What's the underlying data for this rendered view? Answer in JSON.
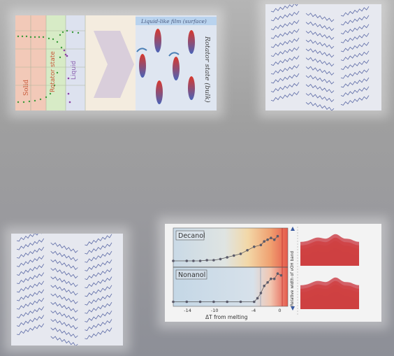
{
  "phase_panel": {
    "solid_label": "Solid",
    "rotator_label": "Rotator state",
    "liquid_label": "Liquid",
    "film_label": "Liquid-like film (surface)",
    "bulk_label": "Rotator state (bulk)"
  },
  "colors": {
    "solid_bg": "#f2c9b8",
    "rotator_bg": "#d7ebc6",
    "liquid_bg": "#dde2ef",
    "film_bg": "#d8e3f2",
    "accent_red": "#d9382c",
    "accent_blue": "#3f5fb5",
    "molecule_lines": "#5c6aa6"
  },
  "chart_data": [
    {
      "type": "scatter",
      "name": "Decanol",
      "x": [
        -16,
        -14,
        -13,
        -12,
        -11,
        -10,
        -9,
        -8,
        -7,
        -6,
        -5,
        -4,
        -3,
        -2.5,
        -2,
        -1.5,
        -1,
        -0.5
      ],
      "y": [
        0.1,
        0.1,
        0.1,
        0.1,
        0.12,
        0.12,
        0.15,
        0.2,
        0.25,
        0.3,
        0.4,
        0.5,
        0.55,
        0.65,
        0.7,
        0.75,
        0.7,
        0.8
      ],
      "label": "Decanol"
    },
    {
      "type": "scatter",
      "name": "Nonanol",
      "x": [
        -16,
        -14,
        -12,
        -10,
        -8,
        -6,
        -4,
        -3.5,
        -3,
        -2.5,
        -2,
        -1.5,
        -1,
        -0.5,
        0
      ],
      "y": [
        0.05,
        0.05,
        0.05,
        0.05,
        0.05,
        0.05,
        0.05,
        0.15,
        0.3,
        0.5,
        0.6,
        0.7,
        0.7,
        0.85,
        0.8
      ],
      "label": "Nonanol",
      "xlabel": "ΔT from melting",
      "ylabel": "Relative width of νOH band",
      "xticks": [
        "-14",
        "-10",
        "-4",
        "0"
      ],
      "xlim": [
        -16,
        1
      ]
    }
  ]
}
